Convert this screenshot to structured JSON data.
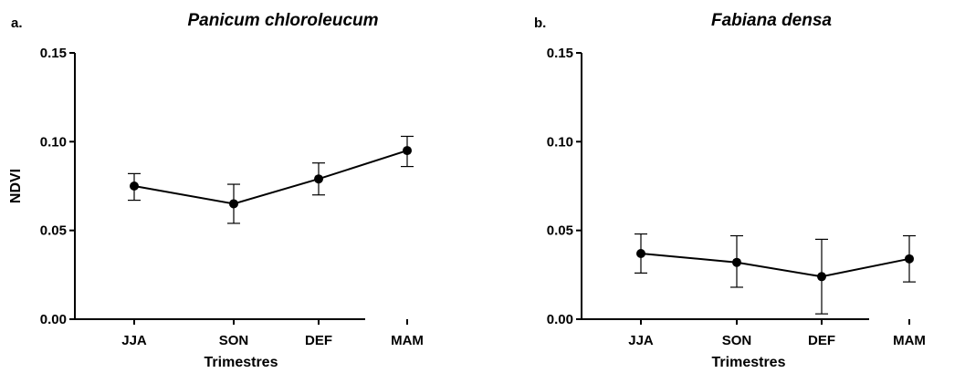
{
  "chart_data": [
    {
      "type": "line",
      "panel": "a.",
      "title": "Panicum chloroleucum",
      "xlabel": "Trimestres",
      "ylabel": "NDVI",
      "categories": [
        "JJA",
        "SON",
        "DEF",
        "MAM"
      ],
      "ylim": [
        0,
        0.15
      ],
      "yticks": [
        "0.00",
        "0.05",
        "0.10",
        "0.15"
      ],
      "ytick_values": [
        0,
        0.05,
        0.1,
        0.15
      ],
      "values": [
        0.075,
        0.065,
        0.079,
        0.095
      ],
      "err_low": [
        0.067,
        0.054,
        0.07,
        0.086
      ],
      "err_high": [
        0.082,
        0.076,
        0.088,
        0.103
      ]
    },
    {
      "type": "line",
      "panel": "b.",
      "title": "Fabiana densa",
      "xlabel": "Trimestres",
      "ylabel": "",
      "categories": [
        "JJA",
        "SON",
        "DEF",
        "MAM"
      ],
      "ylim": [
        0,
        0.15
      ],
      "yticks": [
        "0.00",
        "0.05",
        "0.10",
        "0.15"
      ],
      "ytick_values": [
        0,
        0.05,
        0.1,
        0.15
      ],
      "values": [
        0.037,
        0.032,
        0.024,
        0.034
      ],
      "err_low": [
        0.026,
        0.018,
        0.003,
        0.021
      ],
      "err_high": [
        0.048,
        0.047,
        0.045,
        0.047
      ]
    }
  ]
}
